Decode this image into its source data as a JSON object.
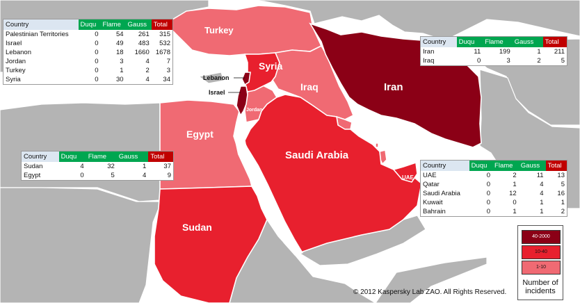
{
  "map": {
    "colors": {
      "water": "#ffffff",
      "land": "#b4b4b4",
      "tier_40_2000": "#8b0016",
      "tier_10_40": "#e8202e",
      "tier_1_10": "#f06a73",
      "border": "#ffffff"
    },
    "countries": {
      "turkey": "Turkey",
      "syria": "Syria",
      "lebanon": "Lebanon",
      "israel": "Israel",
      "jordan": "Jordan",
      "iraq": "Iraq",
      "iran": "Iran",
      "egypt": "Egypt",
      "saudi": "Saudi Arabia",
      "sudan": "Sudan",
      "uae": "UAE"
    },
    "columns": [
      "Country",
      "Duqu",
      "Flame",
      "Gauss",
      "Total"
    ],
    "tables": {
      "levant": [
        [
          "Palestinian Territories",
          "0",
          "54",
          "261",
          "315"
        ],
        [
          "Israel",
          "0",
          "49",
          "483",
          "532"
        ],
        [
          "Lebanon",
          "0",
          "18",
          "1660",
          "1678"
        ],
        [
          "Jordan",
          "0",
          "3",
          "4",
          "7"
        ],
        [
          "Turkey",
          "0",
          "1",
          "2",
          "3"
        ],
        [
          "Syria",
          "0",
          "30",
          "4",
          "34"
        ]
      ],
      "iran_iraq": [
        [
          "Iran",
          "11",
          "199",
          "1",
          "211"
        ],
        [
          "Iraq",
          "0",
          "3",
          "2",
          "5"
        ]
      ],
      "africa": [
        [
          "Sudan",
          "4",
          "32",
          "1",
          "37"
        ],
        [
          "Egypt",
          "0",
          "5",
          "4",
          "9"
        ]
      ],
      "gulf": [
        [
          "UAE",
          "0",
          "2",
          "11",
          "13"
        ],
        [
          "Qatar",
          "0",
          "1",
          "4",
          "5"
        ],
        [
          "Saudi Arabia",
          "0",
          "12",
          "4",
          "16"
        ],
        [
          "Kuwait",
          "0",
          "0",
          "1",
          "1"
        ],
        [
          "Bahrain",
          "0",
          "1",
          "1",
          "2"
        ]
      ]
    },
    "legend": {
      "title": "Number of incidents",
      "items": [
        "40-2000",
        "10-40",
        "1-10"
      ]
    },
    "credit": "© 2012 Kaspersky Lab ZAO. All Rights Reserved."
  }
}
